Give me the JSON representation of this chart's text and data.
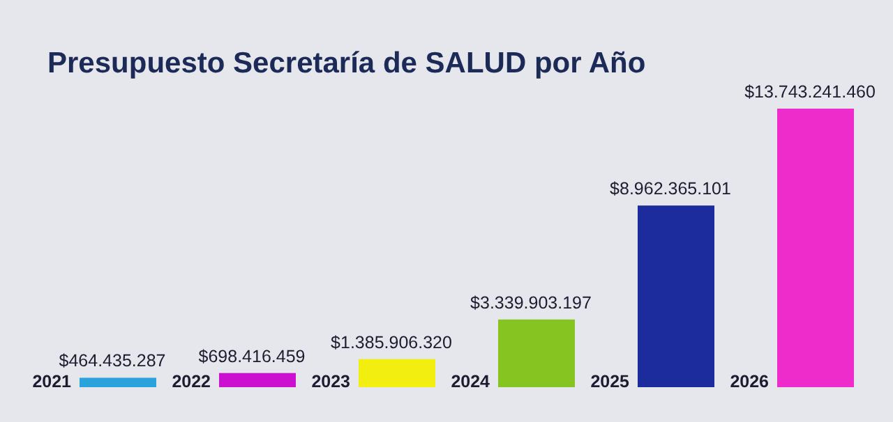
{
  "chart_data": {
    "type": "bar",
    "title": "Presupuesto Secretaría de SALUD por Año",
    "categories": [
      "2021",
      "2022",
      "2023",
      "2024",
      "2025",
      "2026"
    ],
    "values": [
      464435287,
      698416459,
      1385906320,
      3339903197,
      8962365101,
      13743241460
    ],
    "colors": [
      "#2aa3dc",
      "#cc10d0",
      "#f2ee10",
      "#86c422",
      "#1c2c9c",
      "#ee2ccc"
    ],
    "value_labels": [
      "$464.435.287",
      "$698.416.459",
      "$1.385.906.320",
      "$3.339.903.197",
      "$8.962.365.101",
      "$13.743.241.460"
    ]
  }
}
